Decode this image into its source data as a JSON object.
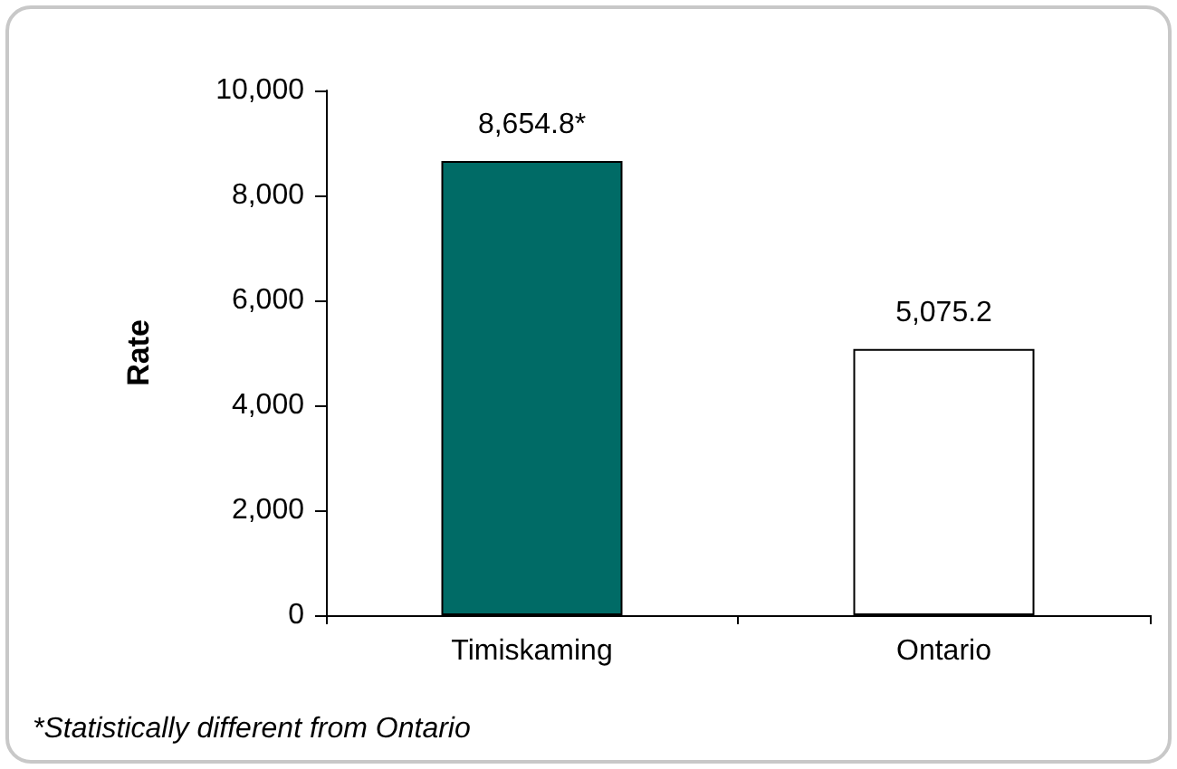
{
  "chart_data": {
    "type": "bar",
    "ylabel": "Rate",
    "categories": [
      "Timiskaming",
      "Ontario"
    ],
    "values": [
      8654.8,
      5075.2
    ],
    "colors": [
      "#006b66",
      "#ffffff"
    ],
    "value_labels": [
      "8,654.8*",
      "5,075.2"
    ],
    "ylim": [
      0,
      10000
    ],
    "yticks": [
      0,
      {
        "value": 2000,
        "label": "2,000"
      },
      {
        "value": 4000,
        "label": "4,000"
      },
      {
        "value": 6000,
        "label": "6,000"
      },
      {
        "value": 8000,
        "label": "8,000"
      },
      {
        "value": 10000,
        "label": "10,000"
      }
    ],
    "grid": false,
    "annotations": [
      "*Statistically different from Ontario"
    ]
  }
}
